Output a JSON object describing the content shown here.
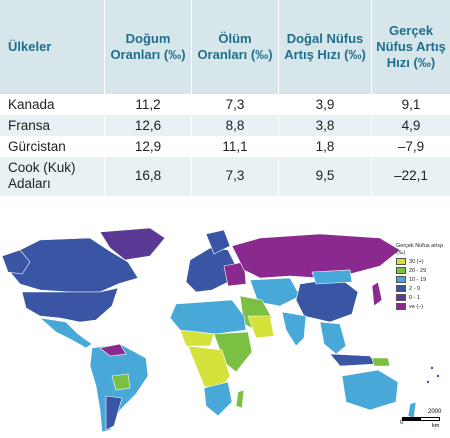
{
  "table": {
    "headers": [
      "Ülkeler",
      "Doğum Oranları (‰)",
      "Ölüm Oranları (‰)",
      "Doğal Nüfus Artış Hızı (‰)",
      "Gerçek Nüfus Artış Hızı (‰)"
    ],
    "rows": [
      [
        "Kanada",
        "11,2",
        "7,3",
        "3,9",
        "9,1"
      ],
      [
        "Fransa",
        "12,6",
        "8,8",
        "3,8",
        "4,9"
      ],
      [
        "Gürcistan",
        "12,9",
        "11,1",
        "1,8",
        "–7,9"
      ],
      [
        "Cook (Kuk) Adaları",
        "16,8",
        "7,3",
        "9,5",
        "–22,1"
      ]
    ]
  },
  "legend": {
    "title": "Gerçek Nüfus artışı (‰)",
    "items": [
      {
        "label": "30 (+)",
        "color": "#d4e23a"
      },
      {
        "label": "20 - 29",
        "color": "#7bc043"
      },
      {
        "label": "10 - 19",
        "color": "#48a9d8"
      },
      {
        "label": "2 - 9",
        "color": "#3a55a4"
      },
      {
        "label": "0 - 1",
        "color": "#5b3a96"
      },
      {
        "label": "ve (–)",
        "color": "#8a2a8e"
      }
    ]
  },
  "scale": {
    "start": "0",
    "end": "2000",
    "unit": "km"
  },
  "colors": {
    "header_bg": "#d7e6ea",
    "header_text": "#1f6f8b",
    "row_alt": "#e8f1f3"
  }
}
